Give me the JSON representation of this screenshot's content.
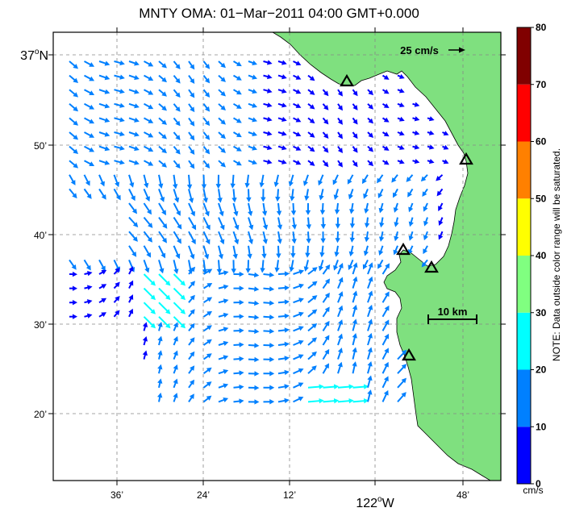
{
  "title": "MNTY OMA: 01−Mar−2011 04:00 GMT+0.000",
  "lat_labels": [
    {
      "text": "37",
      "suffix": "N",
      "deg": true
    },
    {
      "text": "50’"
    },
    {
      "text": "40’"
    },
    {
      "text": "30’"
    },
    {
      "text": "20’"
    }
  ],
  "lon_labels": [
    {
      "text": "36’"
    },
    {
      "text": "24’"
    },
    {
      "text": "12’"
    },
    {
      "text": "122",
      "suffix": "W",
      "deg": true
    },
    {
      "text": "48’"
    }
  ],
  "reference_vector": {
    "label": "25 cm/s",
    "speed_cm_s": 25
  },
  "scale_bar": {
    "label": "10 km"
  },
  "colorbar": {
    "ticks": [
      "0",
      "10",
      "20",
      "30",
      "40",
      "50",
      "60",
      "70",
      "80"
    ],
    "unit": "cm/s",
    "note": "NOTE: Data outside color range will be saturated.",
    "colors": [
      "#0000ff",
      "#0080ff",
      "#00ffff",
      "#80ff80",
      "#ffff00",
      "#ff8000",
      "#ff0000",
      "#800000"
    ]
  },
  "land_color": "#7fe07f",
  "site_marker": "triangle-outline-icon"
}
